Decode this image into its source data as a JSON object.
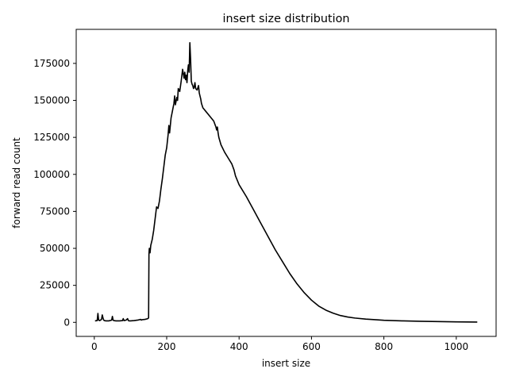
{
  "chart_data": {
    "type": "line",
    "title": "insert size distribution",
    "xlabel": "insert size",
    "ylabel": "forward read count",
    "xlim": [
      -50,
      1110
    ],
    "ylim": [
      -9500,
      198000
    ],
    "grid": false,
    "x_ticks": [
      0,
      200,
      400,
      600,
      800,
      1000
    ],
    "x_tick_labels": [
      "0",
      "200",
      "400",
      "600",
      "800",
      "1000"
    ],
    "y_ticks": [
      0,
      25000,
      50000,
      75000,
      100000,
      125000,
      150000,
      175000
    ],
    "y_tick_labels": [
      "0",
      "25000",
      "50000",
      "75000",
      "100000",
      "125000",
      "150000",
      "175000"
    ],
    "series": [
      {
        "color": "#000000",
        "x": [
          2,
          8,
          10,
          12,
          15,
          20,
          22,
          24,
          26,
          28,
          32,
          40,
          48,
          50,
          52,
          54,
          60,
          70,
          78,
          80,
          82,
          88,
          92,
          94,
          96,
          100,
          110,
          120,
          128,
          130,
          132,
          140,
          148,
          150,
          151,
          152,
          154,
          156,
          160,
          164,
          168,
          172,
          176,
          180,
          184,
          188,
          192,
          196,
          200,
          204,
          206,
          208,
          212,
          216,
          220,
          222,
          224,
          228,
          230,
          232,
          236,
          240,
          244,
          248,
          250,
          252,
          254,
          256,
          258,
          260,
          262,
          264,
          266,
          268,
          270,
          272,
          274,
          276,
          278,
          280,
          284,
          288,
          290,
          292,
          294,
          296,
          300,
          310,
          320,
          330,
          336,
          338,
          340,
          342,
          344,
          350,
          360,
          370,
          380,
          386,
          390,
          400,
          420,
          440,
          460,
          480,
          500,
          520,
          540,
          560,
          580,
          600,
          620,
          640,
          660,
          680,
          700,
          720,
          750,
          780,
          800,
          850,
          900,
          950,
          1000,
          1058
        ],
        "y": [
          1000,
          1200,
          6000,
          1500,
          1200,
          2000,
          5000,
          3000,
          1500,
          1200,
          1000,
          1000,
          1500,
          4000,
          1500,
          1200,
          1000,
          1000,
          1200,
          2500,
          1200,
          1500,
          2500,
          1200,
          1000,
          1000,
          1200,
          1500,
          2000,
          1500,
          1800,
          2000,
          2500,
          3000,
          46000,
          50000,
          47000,
          52000,
          56000,
          62000,
          70000,
          78000,
          77000,
          82000,
          90000,
          97000,
          105000,
          113000,
          118000,
          127000,
          133000,
          128000,
          138000,
          143000,
          148000,
          153000,
          147000,
          152000,
          150000,
          158000,
          156000,
          163000,
          171000,
          165000,
          169000,
          164000,
          167000,
          162000,
          170000,
          174000,
          169000,
          189000,
          178000,
          163000,
          161000,
          160000,
          158000,
          159000,
          162000,
          158000,
          157000,
          160000,
          155000,
          153000,
          151000,
          148000,
          145000,
          142000,
          139000,
          136000,
          132000,
          130000,
          132000,
          128000,
          125000,
          120000,
          115000,
          111000,
          107000,
          103000,
          99000,
          93000,
          85000,
          76000,
          67000,
          58000,
          49000,
          41000,
          33000,
          26000,
          20000,
          15000,
          11000,
          8200,
          6200,
          4600,
          3600,
          2900,
          2200,
          1700,
          1400,
          1000,
          700,
          500,
          300,
          200
        ]
      }
    ]
  }
}
